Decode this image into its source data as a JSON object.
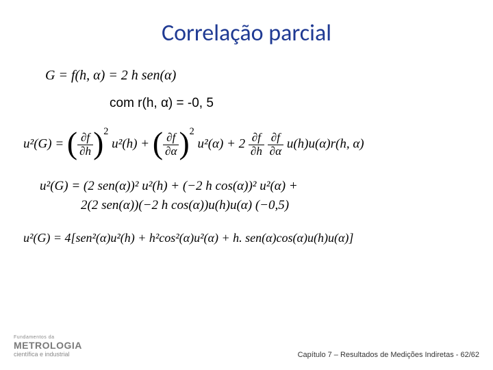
{
  "title": {
    "text": "Correlação parcial",
    "color": "#1f3a93"
  },
  "equations": {
    "definition": "G = f(h, α) = 2 h sen(α)",
    "note": "com r(h, α) = -0, 5",
    "uncertainty_general": {
      "lhs": "u²(G) =",
      "term1_num": "∂f",
      "term1_den": "∂h",
      "term1_rest": "u²(h) +",
      "term2_num": "∂f",
      "term2_den": "∂α",
      "term2_rest": "u²(α) + 2",
      "term3a_num": "∂f",
      "term3a_den": "∂h",
      "term3b_num": "∂f",
      "term3b_den": "∂α",
      "term3_rest": "u(h)u(α)r(h, α)"
    },
    "expanded_line1": "u²(G) = (2 sen(α))² u²(h) + (−2 h cos(α))² u²(α) +",
    "expanded_line2": "2(2 sen(α))(−2 h cos(α))u(h)u(α) (−0,5)",
    "final": "u²(G) = 4[sen²(α)u²(h) + h²cos²(α)u²(α) + h. sen(α)cos(α)u(h)u(α)]"
  },
  "footer": {
    "small": "Fundamentos da",
    "brand": "METROLOGIA",
    "tag": "científica e industrial",
    "chapter": "Capítulo 7 – Resultados de Medições Indiretas - 62/62"
  }
}
